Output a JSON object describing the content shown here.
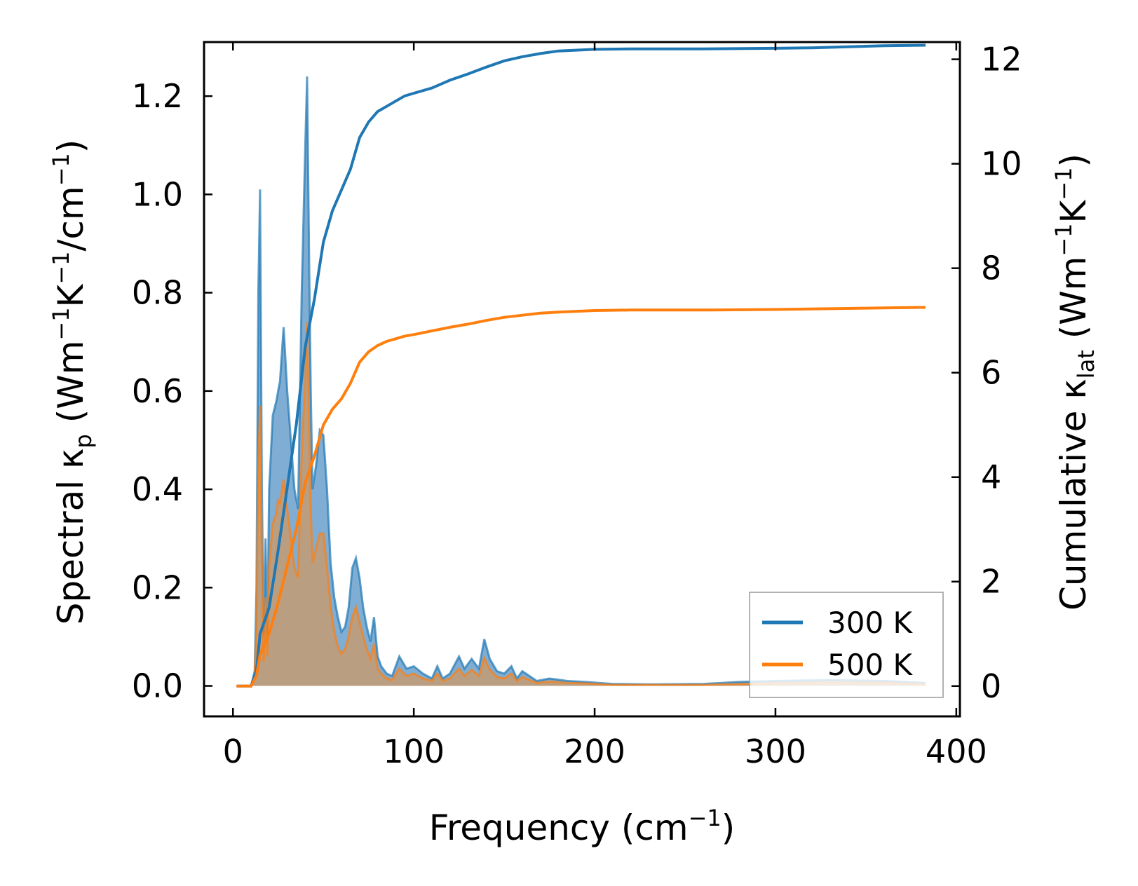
{
  "chart_data": {
    "type": "area",
    "title": "",
    "xlabel": {
      "main": "Frequency (cm",
      "sup": "−1",
      "end": ")"
    },
    "ylabel_left": {
      "pre": "Spectral κ",
      "sub": "p",
      "mid1": " (Wm",
      "sup1": "−1",
      "mid2": "K",
      "sup2": "−1",
      "mid3": "/cm",
      "sup3": "−1",
      "end": ")"
    },
    "ylabel_right": {
      "pre": "Cumulative κ",
      "sub": "lat",
      "mid1": " (Wm",
      "sup1": "−1",
      "mid2": "K",
      "sup2": "−1",
      "end": ")"
    },
    "xlim": [
      -16,
      402
    ],
    "ylim_left": [
      -0.062,
      1.31
    ],
    "ylim_right": [
      -0.58,
      12.33
    ],
    "x_ticks": [
      0,
      100,
      200,
      300,
      400
    ],
    "y_left_ticks": [
      0.0,
      0.2,
      0.4,
      0.6,
      0.8,
      1.0,
      1.2
    ],
    "y_left_tick_labels": [
      "0.0",
      "0.2",
      "0.4",
      "0.6",
      "0.8",
      "1.0",
      "1.2"
    ],
    "y_right_ticks": [
      0,
      2,
      4,
      6,
      8,
      10,
      12
    ],
    "y_right_tick_labels": [
      "0",
      "2",
      "4",
      "6",
      "8",
      "10",
      "12"
    ],
    "legend_position": "bottom-right",
    "colors": {
      "300K": "#1f77b4",
      "500K": "#ff7f0e",
      "300K_fill": "#6a9fcb",
      "500K_fill": "#c89a6e"
    },
    "series": [
      {
        "name": "300 K",
        "kind": "spectral",
        "x": [
          2,
          6,
          10,
          12,
          13,
          14,
          15,
          16,
          17,
          18,
          19,
          20,
          22,
          24,
          25,
          26,
          28,
          30,
          32,
          34,
          36,
          38,
          40,
          41,
          42,
          43,
          44,
          46,
          48,
          50,
          52,
          54,
          56,
          58,
          60,
          62,
          64,
          66,
          68,
          70,
          72,
          74,
          76,
          78,
          80,
          82,
          85,
          88,
          92,
          96,
          100,
          105,
          110,
          113,
          116,
          120,
          125,
          128,
          132,
          136,
          139,
          142,
          146,
          150,
          154,
          157,
          160,
          164,
          168,
          175,
          185,
          195,
          210,
          230,
          260,
          280,
          300,
          330,
          360,
          383
        ],
        "y": [
          0,
          0,
          0,
          0.03,
          0.2,
          0.8,
          1.01,
          0.4,
          0.1,
          0.3,
          0.1,
          0.4,
          0.55,
          0.58,
          0.6,
          0.62,
          0.73,
          0.6,
          0.5,
          0.4,
          0.36,
          0.8,
          1.1,
          1.24,
          0.9,
          0.6,
          0.4,
          0.45,
          0.52,
          0.51,
          0.4,
          0.25,
          0.18,
          0.14,
          0.11,
          0.12,
          0.16,
          0.24,
          0.26,
          0.22,
          0.16,
          0.12,
          0.09,
          0.14,
          0.06,
          0.04,
          0.025,
          0.02,
          0.06,
          0.035,
          0.04,
          0.025,
          0.015,
          0.04,
          0.015,
          0.025,
          0.06,
          0.035,
          0.055,
          0.035,
          0.095,
          0.055,
          0.03,
          0.025,
          0.04,
          0.015,
          0.03,
          0.02,
          0.01,
          0.015,
          0.01,
          0.008,
          0.004,
          0.003,
          0.004,
          0.008,
          0.01,
          0.012,
          0.01,
          0.006
        ]
      },
      {
        "name": "500 K",
        "kind": "spectral",
        "x": [
          2,
          6,
          10,
          12,
          13,
          14,
          15,
          16,
          17,
          18,
          19,
          20,
          22,
          24,
          25,
          26,
          28,
          30,
          32,
          34,
          36,
          38,
          40,
          41,
          42,
          43,
          44,
          46,
          48,
          50,
          52,
          54,
          56,
          58,
          60,
          62,
          64,
          66,
          68,
          70,
          72,
          74,
          76,
          78,
          80,
          82,
          85,
          88,
          92,
          96,
          100,
          105,
          110,
          113,
          116,
          120,
          125,
          128,
          132,
          136,
          139,
          142,
          146,
          150,
          154,
          157,
          160,
          164,
          168,
          175,
          185,
          195,
          210,
          230,
          260,
          280,
          300,
          330,
          360,
          383
        ],
        "y": [
          0,
          0,
          0,
          0.02,
          0.12,
          0.45,
          0.57,
          0.25,
          0.05,
          0.18,
          0.06,
          0.24,
          0.33,
          0.35,
          0.38,
          0.37,
          0.42,
          0.36,
          0.3,
          0.24,
          0.22,
          0.47,
          0.62,
          0.74,
          0.55,
          0.36,
          0.25,
          0.28,
          0.31,
          0.31,
          0.24,
          0.16,
          0.11,
          0.08,
          0.065,
          0.075,
          0.1,
          0.14,
          0.16,
          0.13,
          0.1,
          0.075,
          0.055,
          0.085,
          0.035,
          0.025,
          0.015,
          0.012,
          0.035,
          0.02,
          0.025,
          0.015,
          0.01,
          0.025,
          0.01,
          0.015,
          0.035,
          0.02,
          0.033,
          0.02,
          0.057,
          0.033,
          0.018,
          0.015,
          0.025,
          0.01,
          0.018,
          0.012,
          0.006,
          0.009,
          0.006,
          0.005,
          0.002,
          0.002,
          0.002,
          0.004,
          0.005,
          0.007,
          0.006,
          0.003
        ]
      },
      {
        "name": "300 K",
        "kind": "cumulative",
        "x": [
          2,
          10,
          13,
          15,
          20,
          25,
          30,
          35,
          40,
          45,
          50,
          55,
          60,
          65,
          70,
          75,
          80,
          85,
          90,
          95,
          100,
          110,
          120,
          130,
          140,
          150,
          160,
          170,
          180,
          200,
          220,
          260,
          300,
          320,
          340,
          360,
          383
        ],
        "y": [
          0,
          0,
          0.3,
          1.0,
          1.5,
          2.6,
          3.8,
          5.0,
          6.5,
          7.4,
          8.5,
          9.1,
          9.5,
          9.9,
          10.5,
          10.8,
          11.0,
          11.1,
          11.2,
          11.3,
          11.35,
          11.45,
          11.6,
          11.72,
          11.85,
          11.97,
          12.05,
          12.11,
          12.16,
          12.19,
          12.2,
          12.2,
          12.21,
          12.22,
          12.24,
          12.26,
          12.27
        ]
      },
      {
        "name": "500 K",
        "kind": "cumulative",
        "x": [
          2,
          10,
          13,
          15,
          20,
          25,
          30,
          35,
          40,
          45,
          50,
          55,
          60,
          65,
          70,
          75,
          80,
          85,
          90,
          95,
          100,
          110,
          120,
          130,
          140,
          150,
          160,
          170,
          180,
          200,
          220,
          260,
          300,
          320,
          340,
          360,
          383
        ],
        "y": [
          0,
          0,
          0.2,
          0.6,
          1.0,
          1.6,
          2.3,
          3.0,
          3.9,
          4.4,
          5.0,
          5.3,
          5.5,
          5.8,
          6.2,
          6.4,
          6.52,
          6.6,
          6.65,
          6.7,
          6.73,
          6.8,
          6.87,
          6.93,
          7.0,
          7.06,
          7.1,
          7.14,
          7.16,
          7.19,
          7.2,
          7.2,
          7.21,
          7.22,
          7.23,
          7.24,
          7.25
        ]
      }
    ],
    "legend": [
      {
        "label": "300 K",
        "color": "#1f77b4"
      },
      {
        "label": "500 K",
        "color": "#ff7f0e"
      }
    ]
  }
}
